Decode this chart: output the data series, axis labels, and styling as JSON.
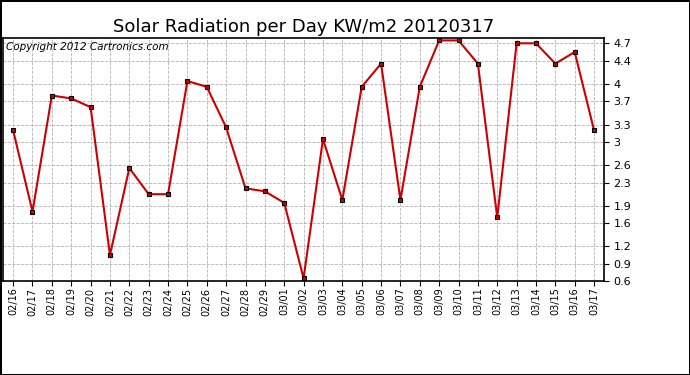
{
  "title": "Solar Radiation per Day KW/m2 20120317",
  "copyright": "Copyright 2012 Cartronics.com",
  "dates": [
    "02/16",
    "02/17",
    "02/18",
    "02/19",
    "02/20",
    "02/21",
    "02/22",
    "02/23",
    "02/24",
    "02/25",
    "02/26",
    "02/27",
    "02/28",
    "02/29",
    "03/01",
    "03/02",
    "03/03",
    "03/04",
    "03/05",
    "03/06",
    "03/07",
    "03/08",
    "03/09",
    "03/10",
    "03/11",
    "03/12",
    "03/13",
    "03/14",
    "03/15",
    "03/16",
    "03/17"
  ],
  "values": [
    3.2,
    1.8,
    3.8,
    3.75,
    3.6,
    1.05,
    2.55,
    2.1,
    2.1,
    4.05,
    3.95,
    3.25,
    2.2,
    2.15,
    1.95,
    0.65,
    3.05,
    2.0,
    3.95,
    4.35,
    2.0,
    3.95,
    4.75,
    4.75,
    4.35,
    1.7,
    4.7,
    4.7,
    4.35,
    4.55,
    3.2
  ],
  "line_color": "#cc0000",
  "marker_color": "#000000",
  "bg_color": "#ffffff",
  "plot_bg_color": "#ffffff",
  "grid_color": "#aaaaaa",
  "ylim": [
    0.6,
    4.8
  ],
  "yticks": [
    0.6,
    0.9,
    1.2,
    1.6,
    1.9,
    2.3,
    2.6,
    3.0,
    3.3,
    3.7,
    4.0,
    4.4,
    4.7
  ],
  "title_fontsize": 13,
  "copyright_fontsize": 7.5,
  "tick_fontsize": 8,
  "xlabel_fontsize": 7
}
